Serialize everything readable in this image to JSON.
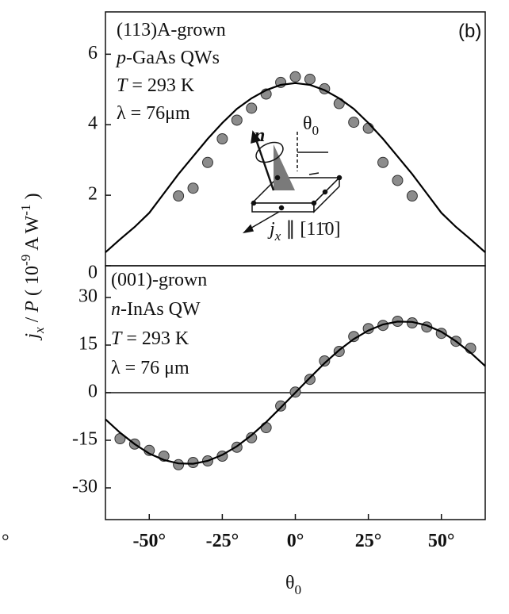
{
  "chart_data": [
    {
      "type": "scatter",
      "ylabel": [
        {
          "text": "j",
          "style": "italic"
        },
        {
          "text": "x",
          "style": "sub italic"
        },
        {
          "text": " / ",
          "style": "normal"
        },
        {
          "text": "P",
          "style": "italic"
        },
        {
          "text": "  ( 10",
          "style": "normal"
        },
        {
          "text": "-9",
          "style": "sup"
        },
        {
          "text": " A W",
          "style": "normal"
        },
        {
          "text": "-1",
          "style": "sup"
        },
        {
          "text": " )",
          "style": "normal"
        }
      ],
      "xlim": [
        -65,
        65
      ],
      "ylim": [
        0,
        7.2
      ],
      "yticks": [
        0,
        2,
        4,
        6
      ],
      "panel_label": "(b)",
      "annotations": [
        [
          {
            "text": "(113)A-grown",
            "style": "normal"
          }
        ],
        [
          {
            "text": "p",
            "style": "italic"
          },
          {
            "text": "-GaAs QWs",
            "style": "normal"
          }
        ],
        [
          {
            "text": "T",
            "style": "italic"
          },
          {
            "text": " = 293 K",
            "style": "normal"
          }
        ],
        [
          {
            "text": "λ = 76μm",
            "style": "normal"
          }
        ]
      ],
      "inset_labels": [
        [
          {
            "text": "n",
            "style": "bolditalic"
          }
        ],
        [
          {
            "text": "θ",
            "style": "normal"
          },
          {
            "text": "0",
            "style": "sub"
          }
        ],
        [
          {
            "text": "j",
            "style": "italic"
          },
          {
            "text": "x",
            "style": "sub italic"
          },
          {
            "text": " ∥ [11̄0]",
            "style": "normal"
          }
        ]
      ],
      "series": [
        {
          "type": "scatter",
          "color": "#8c8c8c",
          "x": [
            -40,
            -35,
            -30,
            -25,
            -20,
            -15,
            -10,
            -5,
            0,
            5,
            10,
            15,
            20,
            25,
            30,
            35,
            40
          ],
          "values": [
            1.98,
            2.2,
            2.93,
            3.6,
            4.13,
            4.47,
            4.87,
            5.2,
            5.36,
            5.29,
            5.02,
            4.6,
            4.07,
            3.9,
            2.93,
            2.42,
            1.98
          ]
        },
        {
          "type": "line",
          "color": "#000000",
          "x": [
            -65,
            -60,
            -55,
            -50,
            -45,
            -40,
            -35,
            -30,
            -25,
            -20,
            -15,
            -10,
            -5,
            0,
            5,
            10,
            15,
            20,
            25,
            30,
            35,
            40,
            45,
            50,
            55,
            60,
            65
          ],
          "values": [
            0.38,
            0.75,
            1.1,
            1.5,
            2.05,
            2.6,
            3.1,
            3.6,
            4.05,
            4.45,
            4.75,
            4.98,
            5.13,
            5.18,
            5.13,
            4.98,
            4.75,
            4.45,
            4.05,
            3.6,
            3.1,
            2.6,
            2.05,
            1.5,
            1.1,
            0.75,
            0.38
          ]
        }
      ]
    },
    {
      "type": "scatter",
      "xlabel": [
        {
          "text": "θ",
          "style": "normal"
        },
        {
          "text": "0",
          "style": "sub"
        }
      ],
      "xlim": [
        -65,
        65
      ],
      "ylim": [
        -40,
        40
      ],
      "xticks": [
        {
          "value": -50,
          "label": "-50°"
        },
        {
          "value": -25,
          "label": "-25°"
        },
        {
          "value": 0,
          "label": "0°"
        },
        {
          "value": 25,
          "label": "25°"
        },
        {
          "value": 50,
          "label": "50°"
        }
      ],
      "yticks": [
        -30,
        -15,
        0,
        15,
        30
      ],
      "zero_line": true,
      "stray_label": "°",
      "annotations": [
        [
          {
            "text": "(001)-grown",
            "style": "normal"
          }
        ],
        [
          {
            "text": "n",
            "style": "italic"
          },
          {
            "text": "-InAs QW",
            "style": "normal"
          }
        ],
        [
          {
            "text": "T",
            "style": "italic"
          },
          {
            "text": " = 293 K",
            "style": "normal"
          }
        ],
        [
          {
            "text": "λ = 76 μm",
            "style": "normal"
          }
        ]
      ],
      "series": [
        {
          "type": "scatter",
          "color": "#8c8c8c",
          "x": [
            -60,
            -55,
            -50,
            -45,
            -40,
            -35,
            -30,
            -25,
            -20,
            -15,
            -10,
            -5,
            0,
            5,
            10,
            15,
            20,
            25,
            30,
            35,
            40,
            45,
            50,
            55,
            60
          ],
          "values": [
            -14.5,
            -16.2,
            -18.2,
            -20,
            -22.7,
            -22,
            -21.5,
            -20,
            -17.2,
            -14.2,
            -11,
            -4.2,
            0.2,
            4.2,
            10,
            13,
            17.7,
            20.2,
            21.2,
            22.5,
            22,
            20.7,
            18.7,
            16.2,
            14
          ]
        },
        {
          "type": "line",
          "color": "#000000",
          "x": [
            -65,
            -60,
            -55,
            -50,
            -45,
            -40,
            -35,
            -30,
            -25,
            -20,
            -15,
            -10,
            -5,
            0,
            5,
            10,
            15,
            20,
            25,
            30,
            35,
            40,
            45,
            50,
            55,
            60,
            65
          ],
          "values": [
            -8.4,
            -12.6,
            -16.2,
            -19.2,
            -21.2,
            -22.3,
            -22.4,
            -21.5,
            -19.6,
            -16.9,
            -13.4,
            -9.3,
            -4.7,
            0,
            4.7,
            9.3,
            13.4,
            16.9,
            19.6,
            21.5,
            22.4,
            22.3,
            21.2,
            19.2,
            16.2,
            12.6,
            8.4
          ]
        }
      ]
    }
  ]
}
